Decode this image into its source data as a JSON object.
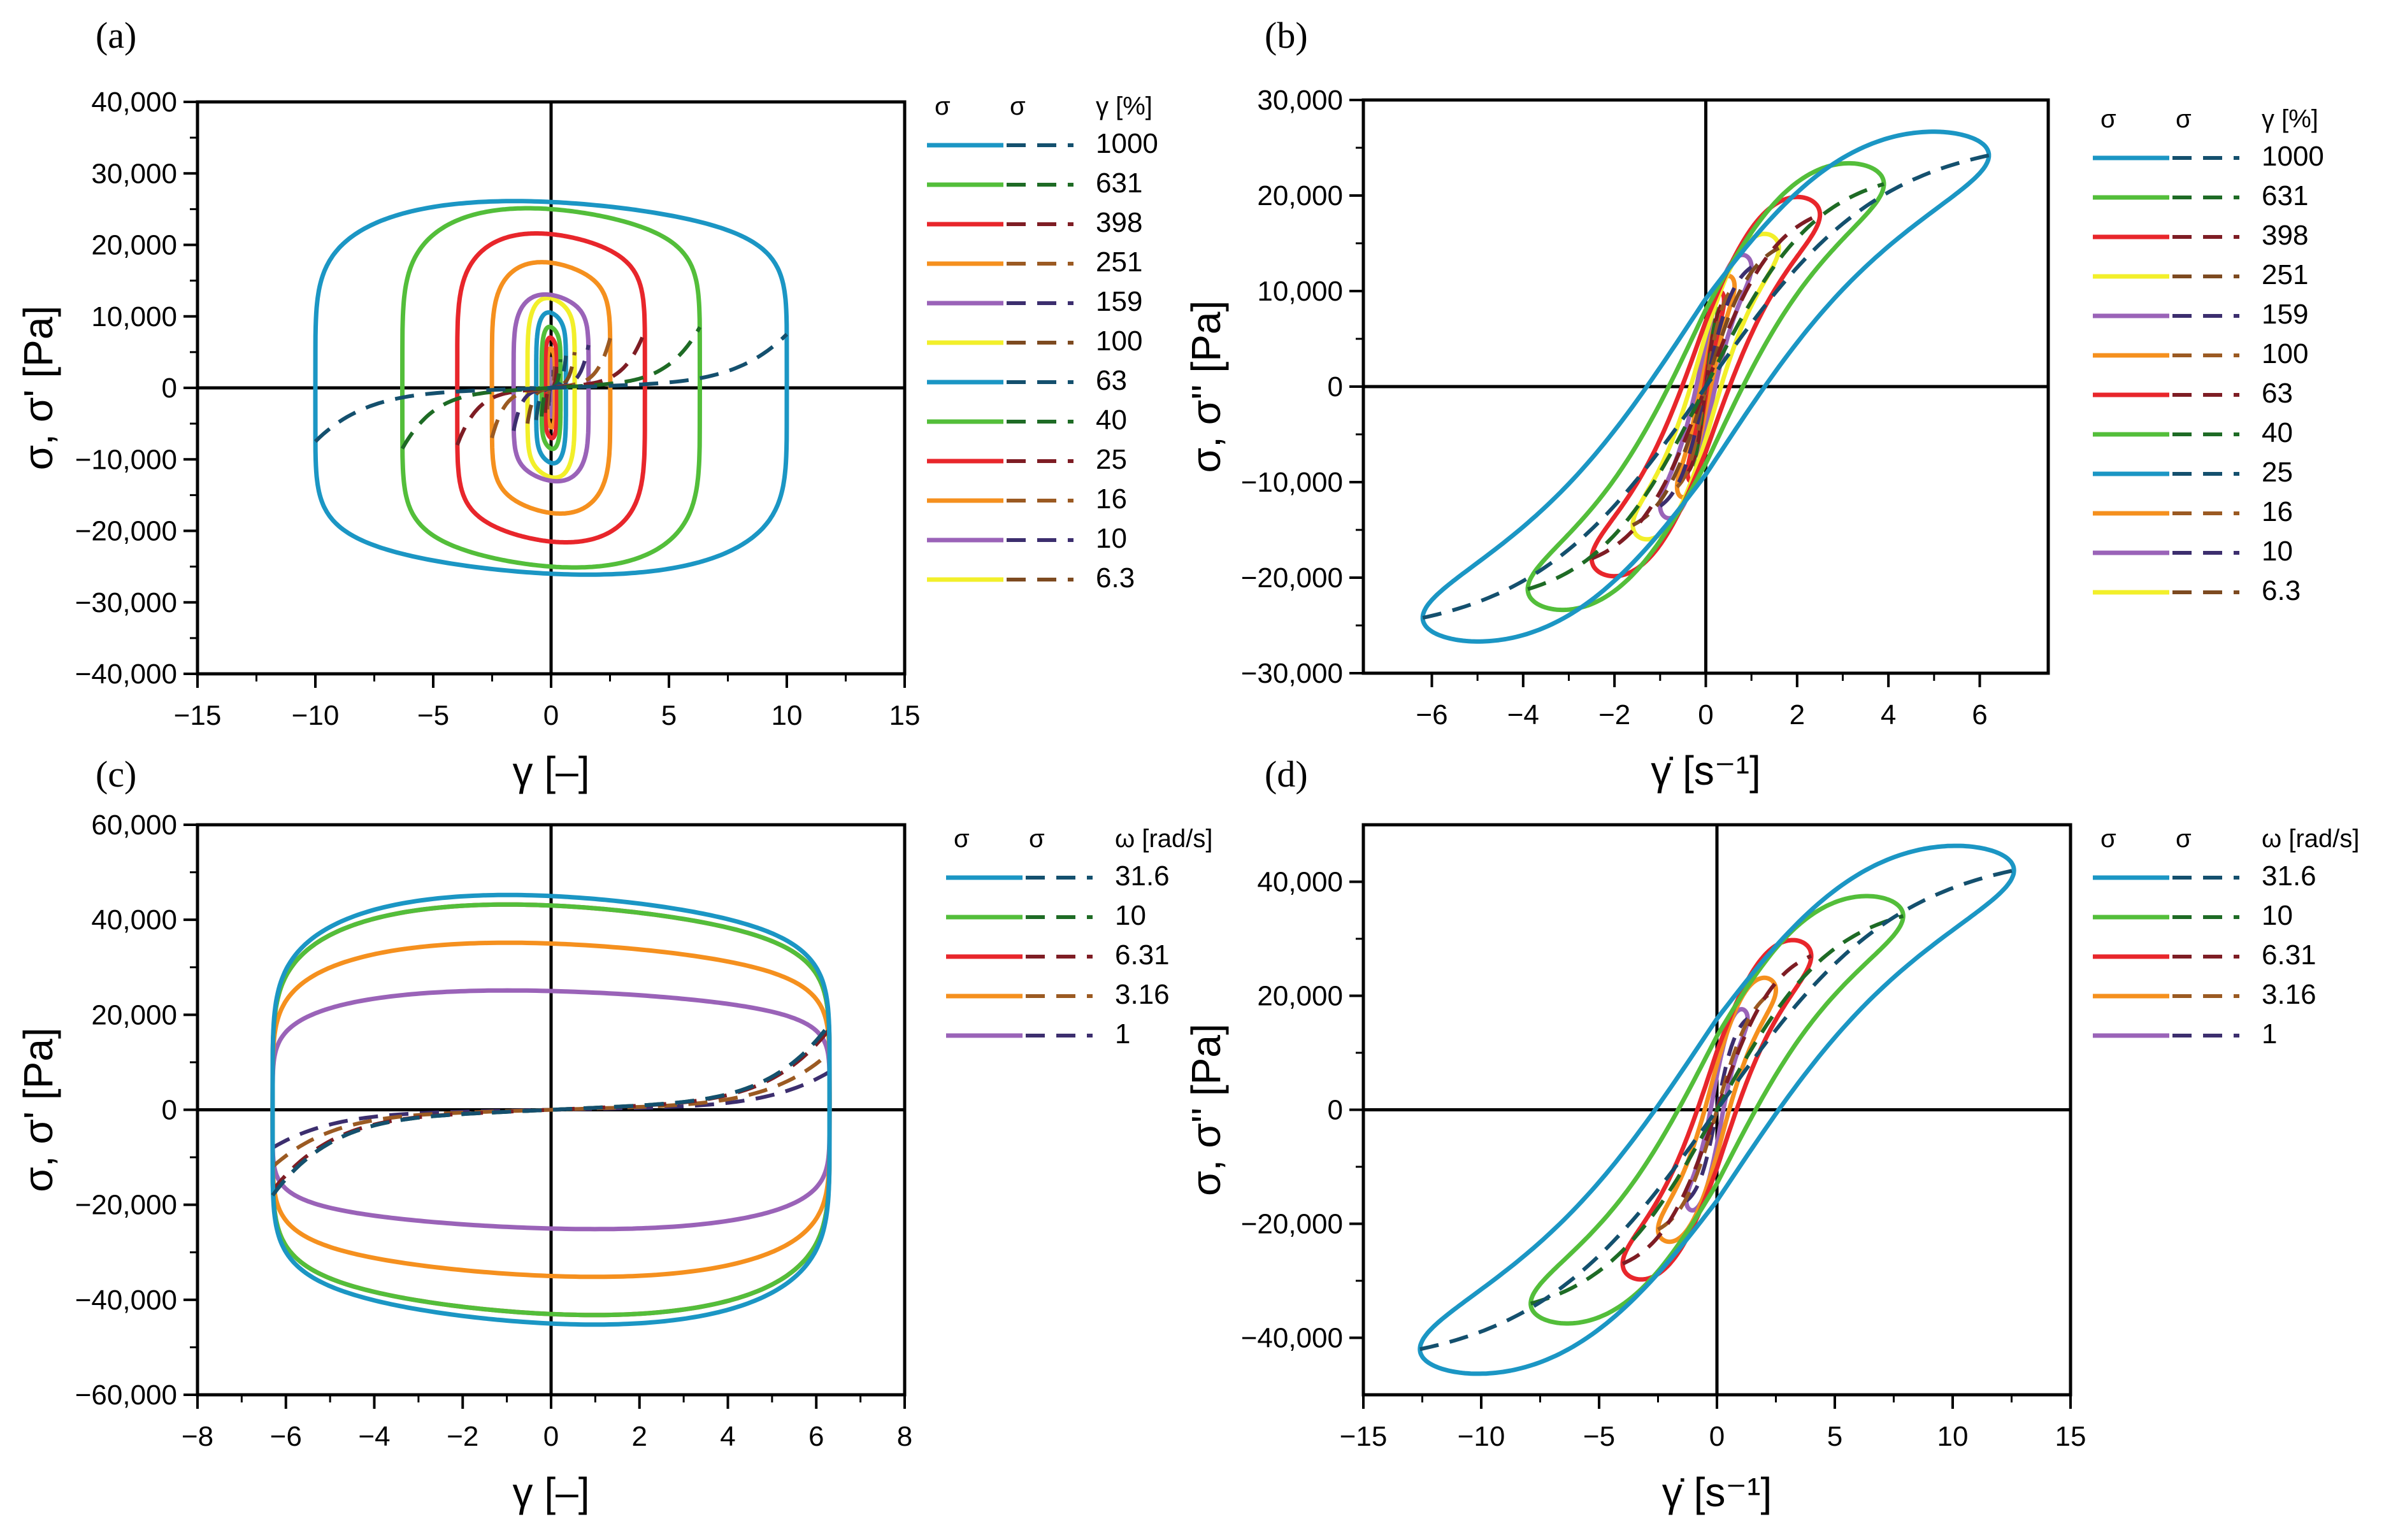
{
  "figure": {
    "panels": [
      {
        "letter": "(a)",
        "xlabel": "γ [–]",
        "ylabel": "σ, σ' [Pa]",
        "legend_header": {
          "solid": "σ",
          "dashed": "σ",
          "param": "γ [%]"
        },
        "legend_entries": [
          "1000",
          "631",
          "398",
          "251",
          "159",
          "100",
          "63",
          "40",
          "25",
          "16",
          "10",
          "6.3"
        ],
        "xticks": [
          "−15",
          "−10",
          "−5",
          "0",
          "5",
          "10",
          "15"
        ],
        "yticks": [
          "40,000",
          "30,000",
          "20,000",
          "10,000",
          "0",
          "−10,000",
          "−20,000",
          "−30,000",
          "−40,000"
        ]
      },
      {
        "letter": "(b)",
        "xlabel": "γ̇ [s⁻¹]",
        "ylabel": "σ, σ'' [Pa]",
        "legend_header": {
          "solid": "σ",
          "dashed": "σ",
          "param": "γ [%]"
        },
        "legend_entries": [
          "1000",
          "631",
          "398",
          "251",
          "159",
          "100",
          "63",
          "40",
          "25",
          "16",
          "10",
          "6.3"
        ],
        "xticks": [
          "−6",
          "−4",
          "−2",
          "0",
          "2",
          "4",
          "6"
        ],
        "yticks": [
          "30,000",
          "20,000",
          "10,000",
          "0",
          "−10,000",
          "−20,000",
          "−30,000"
        ]
      },
      {
        "letter": "(c)",
        "xlabel": "γ [–]",
        "ylabel": "σ, σ' [Pa]",
        "legend_header": {
          "solid": "σ",
          "dashed": "σ",
          "param": "ω  [rad/s]"
        },
        "legend_entries": [
          "31.6",
          "10",
          "6.31",
          "3.16",
          "1"
        ],
        "xticks": [
          "−8",
          "−6",
          "−4",
          "−2",
          "0",
          "2",
          "4",
          "6",
          "8"
        ],
        "yticks": [
          "60,000",
          "40,000",
          "20,000",
          "0",
          "−20,000",
          "−40,000",
          "−60,000"
        ]
      },
      {
        "letter": "(d)",
        "xlabel": "γ̇ [s⁻¹]",
        "ylabel": "σ, σ'' [Pa]",
        "legend_header": {
          "solid": "σ",
          "dashed": "σ",
          "param": "ω  [rad/s]"
        },
        "legend_entries": [
          "31.6",
          "10",
          "6.31",
          "3.16",
          "1"
        ],
        "xticks": [
          "−15",
          "−10",
          "−5",
          "0",
          "5",
          "10",
          "15"
        ],
        "yticks": [
          "40,000",
          "20,000",
          "0",
          "−20,000",
          "−40,000"
        ]
      }
    ],
    "colors": {
      "blue": "#1b96c4",
      "blue_dark": "#14506e",
      "green": "#53be3a",
      "green_dark": "#1e6b25",
      "red": "#e8262b",
      "red_dark": "#7e1d24",
      "orange": "#f5901e",
      "orange_dark": "#9b5a22",
      "purple": "#9a63b8",
      "purple_dark": "#3c2e6e",
      "yellow": "#f2ef2a",
      "yellow_dark": "#7d4a20"
    }
  },
  "chart_data": [
    {
      "type": "line",
      "panel": "(a)",
      "title": "",
      "xlabel": "γ [–]",
      "ylabel": "σ, σ' [Pa]",
      "xlim": [
        -15,
        15
      ],
      "ylim": [
        -40000,
        40000
      ],
      "grid": false,
      "legend_position": "right",
      "series": [
        {
          "name": "1000",
          "amp_strain": 10,
          "amp_stress": 26000,
          "elastic_peak": 7500,
          "color": "blue"
        },
        {
          "name": "631",
          "amp_strain": 6.31,
          "amp_stress": 25000,
          "elastic_peak": 8500,
          "color": "green"
        },
        {
          "name": "398",
          "amp_strain": 3.98,
          "amp_stress": 21500,
          "elastic_peak": 8000,
          "color": "red"
        },
        {
          "name": "251",
          "amp_strain": 2.51,
          "amp_stress": 17500,
          "elastic_peak": 7000,
          "color": "orange"
        },
        {
          "name": "159",
          "amp_strain": 1.59,
          "amp_stress": 13000,
          "elastic_peak": 6000,
          "color": "purple"
        },
        {
          "name": "100",
          "amp_strain": 1.0,
          "amp_stress": 12500,
          "elastic_peak": 5000,
          "color": "yellow"
        },
        {
          "name": "63",
          "amp_strain": 0.63,
          "amp_stress": 10500,
          "elastic_peak": 4500,
          "color": "blue"
        },
        {
          "name": "40",
          "amp_strain": 0.4,
          "amp_stress": 8500,
          "elastic_peak": 4000,
          "color": "green"
        },
        {
          "name": "25",
          "amp_strain": 0.25,
          "amp_stress": 7000,
          "elastic_peak": 3500,
          "color": "red"
        },
        {
          "name": "16",
          "amp_strain": 0.16,
          "amp_stress": 5500,
          "elastic_peak": 3000,
          "color": "orange"
        },
        {
          "name": "10",
          "amp_strain": 0.1,
          "amp_stress": 4000,
          "elastic_peak": 2500,
          "color": "purple"
        },
        {
          "name": "6.3",
          "amp_strain": 0.063,
          "amp_stress": 3000,
          "elastic_peak": 2000,
          "color": "yellow"
        }
      ]
    },
    {
      "type": "line",
      "panel": "(b)",
      "title": "",
      "xlabel": "γ̇ [s⁻¹]",
      "ylabel": "σ, σ'' [Pa]",
      "xlim": [
        -7.5,
        7.5
      ],
      "ylim": [
        -30000,
        30000
      ],
      "grid": false,
      "legend_position": "right",
      "series": [
        {
          "name": "1000",
          "amp_rate": 6.2,
          "amp_stress": 24200,
          "color": "blue"
        },
        {
          "name": "631",
          "amp_rate": 3.9,
          "amp_stress": 21200,
          "color": "green"
        },
        {
          "name": "398",
          "amp_rate": 2.5,
          "amp_stress": 18000,
          "color": "red"
        },
        {
          "name": "251",
          "amp_rate": 1.6,
          "amp_stress": 14500,
          "color": "yellow"
        },
        {
          "name": "159",
          "amp_rate": 1.0,
          "amp_stress": 12500,
          "color": "purple"
        },
        {
          "name": "100",
          "amp_rate": 0.63,
          "amp_stress": 10500,
          "color": "orange"
        },
        {
          "name": "63",
          "amp_rate": 0.4,
          "amp_stress": 9000,
          "color": "red"
        },
        {
          "name": "40",
          "amp_rate": 0.25,
          "amp_stress": 7500,
          "color": "green"
        },
        {
          "name": "25",
          "amp_rate": 0.16,
          "amp_stress": 6000,
          "color": "blue"
        },
        {
          "name": "16",
          "amp_rate": 0.1,
          "amp_stress": 5000,
          "color": "orange"
        },
        {
          "name": "10",
          "amp_rate": 0.063,
          "amp_stress": 4000,
          "color": "purple"
        },
        {
          "name": "6.3",
          "amp_rate": 0.04,
          "amp_stress": 3000,
          "color": "yellow"
        }
      ]
    },
    {
      "type": "line",
      "panel": "(c)",
      "title": "",
      "xlabel": "γ [–]",
      "ylabel": "σ, σ' [Pa]",
      "xlim": [
        -8,
        8
      ],
      "ylim": [
        -60000,
        60000
      ],
      "grid": false,
      "legend_position": "right",
      "series": [
        {
          "name": "31.6",
          "amp_strain": 6.3,
          "amp_stress": 45000,
          "elastic_peak": 18000,
          "color": "blue"
        },
        {
          "name": "10",
          "amp_strain": 6.3,
          "amp_stress": 43000,
          "elastic_peak": 18000,
          "color": "green"
        },
        {
          "name": "6.31",
          "amp_strain": 6.3,
          "amp_stress": 43000,
          "elastic_peak": 17000,
          "color": "red"
        },
        {
          "name": "3.16",
          "amp_strain": 6.3,
          "amp_stress": 35000,
          "elastic_peak": 12000,
          "color": "orange"
        },
        {
          "name": "1",
          "amp_strain": 6.3,
          "amp_stress": 25000,
          "elastic_peak": 8000,
          "color": "purple"
        }
      ]
    },
    {
      "type": "line",
      "panel": "(d)",
      "title": "",
      "xlabel": "γ̇ [s⁻¹]",
      "ylabel": "σ, σ'' [Pa]",
      "xlim": [
        -15,
        15
      ],
      "ylim": [
        -50000,
        50000
      ],
      "grid": false,
      "legend_position": "right",
      "series": [
        {
          "name": "31.6",
          "amp_rate": 12.6,
          "amp_stress": 42000,
          "color": "blue"
        },
        {
          "name": "10",
          "amp_rate": 7.9,
          "amp_stress": 34000,
          "color": "green"
        },
        {
          "name": "6.31",
          "amp_rate": 4.0,
          "amp_stress": 27000,
          "color": "red"
        },
        {
          "name": "3.16",
          "amp_rate": 2.5,
          "amp_stress": 21000,
          "color": "orange"
        },
        {
          "name": "1",
          "amp_rate": 1.3,
          "amp_stress": 16000,
          "color": "purple"
        }
      ]
    }
  ]
}
